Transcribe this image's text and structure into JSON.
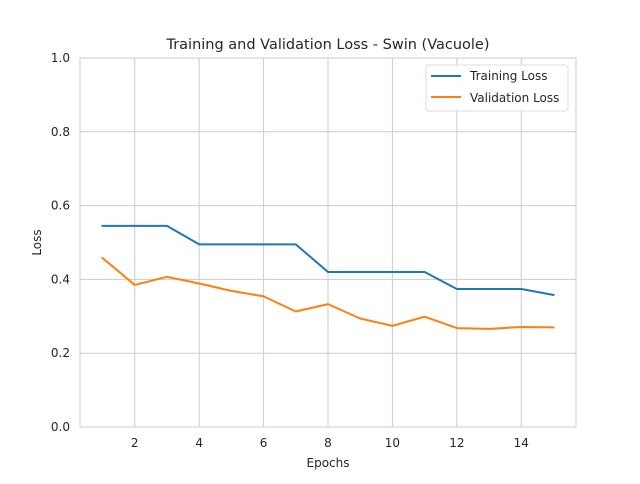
{
  "chart_data": {
    "type": "line",
    "title": "Training and Validation Loss - Swin (Vacuole)",
    "xlabel": "Epochs",
    "ylabel": "Loss",
    "xlim": [
      0.3,
      15.7
    ],
    "ylim": [
      0.0,
      1.0
    ],
    "xticks": [
      2,
      4,
      6,
      8,
      10,
      12,
      14
    ],
    "yticks": [
      0.0,
      0.2,
      0.4,
      0.6,
      0.8,
      1.0
    ],
    "xtick_labels": [
      "2",
      "4",
      "6",
      "8",
      "10",
      "12",
      "14"
    ],
    "ytick_labels": [
      "0.0",
      "0.2",
      "0.4",
      "0.6",
      "0.8",
      "1.0"
    ],
    "grid": true,
    "legend_position": "top-right",
    "x": [
      1,
      2,
      3,
      4,
      5,
      6,
      7,
      8,
      9,
      10,
      11,
      12,
      13,
      14,
      15
    ],
    "series": [
      {
        "name": "Training Loss",
        "color": "#1f77b4",
        "values": [
          0.545,
          0.545,
          0.545,
          0.495,
          0.495,
          0.495,
          0.495,
          0.42,
          0.42,
          0.42,
          0.42,
          0.374,
          0.374,
          0.374,
          0.358
        ]
      },
      {
        "name": "Validation Loss",
        "color": "#ff7f0e",
        "values": [
          0.458,
          0.385,
          0.407,
          0.389,
          0.369,
          0.354,
          0.313,
          0.333,
          0.294,
          0.274,
          0.299,
          0.268,
          0.266,
          0.271,
          0.27
        ]
      }
    ]
  }
}
